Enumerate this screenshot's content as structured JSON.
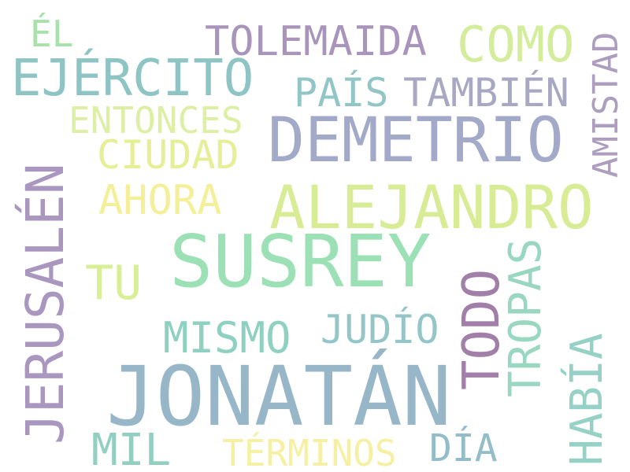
{
  "cloud": {
    "words": {
      "jonatan": {
        "text": "JONATÁN",
        "color": "#97b6c8"
      },
      "susrey": {
        "text": "SUSREY",
        "color": "#9ce0b6"
      },
      "demetrio": {
        "text": "DEMETRIO",
        "color": "#a3a9c8"
      },
      "alejandro": {
        "text": "ALEJANDRO",
        "color": "#d7ec95"
      },
      "jerusalen": {
        "text": "JERUSALÉN",
        "color": "#a997c0"
      },
      "ejercito": {
        "text": "EJÉRCITO",
        "color": "#8fc4c4"
      },
      "todo": {
        "text": "TODO",
        "color": "#a27fa8"
      },
      "como": {
        "text": "COMO",
        "color": "#d4ed9d"
      },
      "tolemaida": {
        "text": "TOLEMAIDA",
        "color": "#a995bb"
      },
      "tu": {
        "text": "TU",
        "color": "#d9ef96"
      },
      "tropas": {
        "text": "TROPAS",
        "color": "#9ad7c1"
      },
      "habia": {
        "text": "HABÍA",
        "color": "#95d1c4"
      },
      "mismo": {
        "text": "MISMO",
        "color": "#8ed1c1"
      },
      "tambien": {
        "text": "TAMBIÉN",
        "color": "#a9a8c3"
      },
      "mil": {
        "text": "MIL",
        "color": "#92cfc1"
      },
      "ahora": {
        "text": "AHORA",
        "color": "#f4f09a"
      },
      "ciudad": {
        "text": "CIUDAD",
        "color": "#e6ef96"
      },
      "judio": {
        "text": "JUDÍO",
        "color": "#94c6c8"
      },
      "dia": {
        "text": "DÍA",
        "color": "#93bdc8"
      },
      "pais": {
        "text": "PAÍS",
        "color": "#92c6c6"
      },
      "entonces": {
        "text": "ENTONCES",
        "color": "#dcefa5"
      },
      "amistad": {
        "text": "AMISTAD",
        "color": "#ad9ec0"
      },
      "terminos": {
        "text": "TÉRMINOS",
        "color": "#f5f0a3"
      },
      "el": {
        "text": "ÉL",
        "color": "#a7e2aa"
      }
    }
  }
}
